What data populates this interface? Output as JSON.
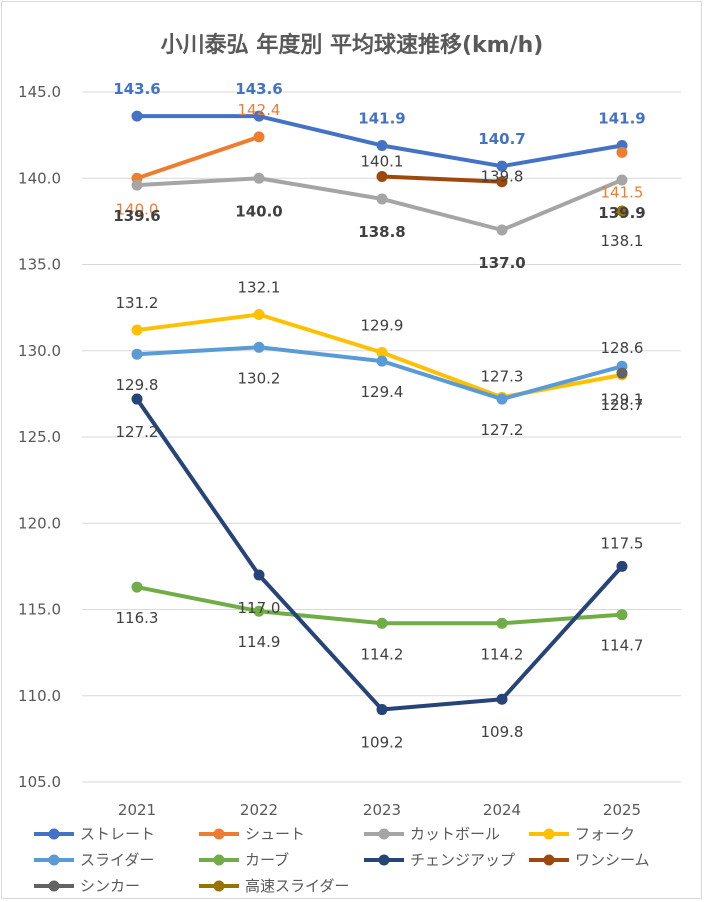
{
  "chart_data": {
    "type": "line",
    "title": "小川泰弘 年度別 平均球速推移(km/h)",
    "categories": [
      "2021",
      "2022",
      "2023",
      "2024",
      "2025"
    ],
    "ylim": [
      105,
      145
    ],
    "yticks": [
      "105.0",
      "110.0",
      "115.0",
      "120.0",
      "125.0",
      "130.0",
      "135.0",
      "140.0",
      "145.0"
    ],
    "grid": true,
    "legend": "bottom",
    "series": [
      {
        "name": "ストレート",
        "color": "#4472C4",
        "values": [
          143.6,
          143.6,
          141.9,
          140.7,
          141.9
        ],
        "labels": [
          "143.6",
          "143.6",
          "141.9",
          "140.7",
          "141.9"
        ]
      },
      {
        "name": "シュート",
        "color": "#ED7D31",
        "values": [
          140.0,
          142.4,
          null,
          null,
          141.5
        ],
        "labels": [
          "140.0",
          "142.4",
          "",
          "",
          "141.5"
        ]
      },
      {
        "name": "カットボール",
        "color": "#A5A5A5",
        "values": [
          139.6,
          140.0,
          138.8,
          137.0,
          139.9
        ],
        "labels": [
          "139.6",
          "140.0",
          "138.8",
          "137.0",
          "139.9"
        ]
      },
      {
        "name": "フォーク",
        "color": "#FFC000",
        "values": [
          131.2,
          132.1,
          129.9,
          127.3,
          128.6
        ],
        "labels": [
          "131.2",
          "132.1",
          "129.9",
          "127.3",
          "128.6"
        ]
      },
      {
        "name": "スライダー",
        "color": "#5B9BD5",
        "values": [
          129.8,
          130.2,
          129.4,
          127.2,
          129.1
        ],
        "labels": [
          "129.8",
          "130.2",
          "129.4",
          "127.2",
          "129.1"
        ]
      },
      {
        "name": "カーブ",
        "color": "#70AD47",
        "values": [
          116.3,
          114.9,
          114.2,
          114.2,
          114.7
        ],
        "labels": [
          "116.3",
          "114.9",
          "114.2",
          "114.2",
          "114.7"
        ]
      },
      {
        "name": "チェンジアップ",
        "color": "#264478",
        "values": [
          127.2,
          117.0,
          109.2,
          109.8,
          117.5
        ],
        "labels": [
          "127.2",
          "117.0",
          "109.2",
          "109.8",
          "117.5"
        ]
      },
      {
        "name": "ワンシーム",
        "color": "#9E480E",
        "values": [
          null,
          null,
          140.1,
          139.8,
          null
        ],
        "labels": [
          "",
          "",
          "140.1",
          "139.8",
          ""
        ]
      },
      {
        "name": "シンカー",
        "color": "#636363",
        "values": [
          null,
          null,
          null,
          null,
          128.7
        ],
        "labels": [
          "",
          "",
          "",
          "",
          "128.7"
        ]
      },
      {
        "name": "高速スライダー",
        "color": "#997300",
        "values": [
          null,
          null,
          null,
          null,
          138.1
        ],
        "labels": [
          "",
          "",
          "",
          "",
          "138.1"
        ]
      }
    ]
  }
}
